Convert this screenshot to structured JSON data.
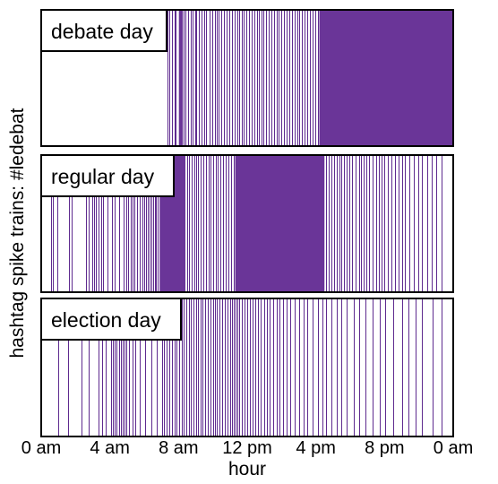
{
  "chart_data": {
    "type": "raster",
    "xlabel": "hour",
    "ylabel": "hashtag spike trains: #ledebat",
    "x_unit": "hours since midnight",
    "xlim": [
      0,
      24
    ],
    "x_ticks": [
      {
        "value": 0,
        "label": "0 am"
      },
      {
        "value": 4,
        "label": "4 am"
      },
      {
        "value": 8,
        "label": "8 am"
      },
      {
        "value": 12,
        "label": "12 pm"
      },
      {
        "value": 16,
        "label": "4 pm"
      },
      {
        "value": 20,
        "label": "8 pm"
      },
      {
        "value": 24,
        "label": "0 am"
      }
    ],
    "spike_color": "#5e2a8f",
    "fill_color": "#6a3598",
    "panels": [
      {
        "label": "debate day",
        "dense_segments": [
          [
            8.02,
            8.25
          ],
          [
            16.2,
            23.95
          ]
        ],
        "spikes": [
          7.35,
          7.45,
          7.6,
          7.75,
          7.85,
          8.3,
          8.42,
          8.55,
          8.7,
          8.82,
          8.95,
          9.05,
          9.2,
          9.35,
          9.5,
          9.62,
          9.8,
          9.95,
          10.1,
          10.2,
          10.35,
          10.5,
          10.62,
          10.8,
          10.95,
          11.1,
          11.25,
          11.4,
          11.55,
          11.7,
          11.8,
          11.95,
          12.1,
          12.25,
          12.4,
          12.55,
          12.7,
          12.85,
          12.95,
          13.1,
          13.25,
          13.4,
          13.55,
          13.7,
          13.85,
          14.0,
          14.15,
          14.3,
          14.45,
          14.6,
          14.75,
          14.9,
          15.05,
          15.2,
          15.35,
          15.5,
          15.65,
          15.8,
          15.95,
          16.1
        ]
      },
      {
        "label": "regular day",
        "dense_segments": [
          [
            6.9,
            8.4
          ],
          [
            11.3,
            16.5
          ]
        ],
        "spikes": [
          0.55,
          0.7,
          0.95,
          1.6,
          1.75,
          2.6,
          2.75,
          2.95,
          3.1,
          3.2,
          3.35,
          3.5,
          3.6,
          3.85,
          4.1,
          4.3,
          4.55,
          4.8,
          4.95,
          5.05,
          5.2,
          5.3,
          5.45,
          5.6,
          5.75,
          5.9,
          6.0,
          6.1,
          6.2,
          6.3,
          6.4,
          6.5,
          6.6,
          6.7,
          6.8,
          8.5,
          8.6,
          8.75,
          8.9,
          9.0,
          9.15,
          9.3,
          9.45,
          9.6,
          9.75,
          9.85,
          10.0,
          10.15,
          10.3,
          10.45,
          10.6,
          10.75,
          10.9,
          11.05,
          11.2,
          16.6,
          16.75,
          16.9,
          17.05,
          17.2,
          17.35,
          17.5,
          17.65,
          17.8,
          17.95,
          18.1,
          18.3,
          18.5,
          18.65,
          18.8,
          18.95,
          19.1,
          19.3,
          19.5,
          19.65,
          19.8,
          20.0,
          20.2,
          20.4,
          20.6,
          20.8,
          21.0,
          21.2,
          21.45,
          21.7,
          21.95,
          22.2,
          22.5,
          22.75,
          23.0,
          23.3
        ]
      },
      {
        "label": "election day",
        "dense_segments": [],
        "spikes": [
          1.0,
          1.55,
          2.35,
          2.75,
          3.35,
          3.55,
          3.75,
          4.05,
          4.15,
          4.3,
          4.4,
          4.55,
          4.65,
          4.75,
          4.85,
          4.95,
          5.1,
          5.3,
          5.5,
          5.75,
          6.05,
          6.4,
          6.75,
          7.05,
          7.15,
          7.3,
          7.45,
          7.6,
          7.75,
          7.9,
          8.05,
          8.2,
          8.3,
          8.45,
          8.6,
          8.7,
          8.85,
          9.0,
          9.15,
          9.3,
          9.4,
          9.55,
          9.7,
          9.85,
          10.0,
          10.1,
          10.25,
          10.4,
          10.55,
          10.7,
          10.85,
          11.0,
          11.1,
          11.2,
          11.3,
          11.45,
          11.55,
          11.7,
          11.85,
          12.0,
          12.15,
          12.3,
          12.45,
          12.6,
          12.8,
          13.0,
          13.15,
          13.3,
          13.5,
          13.7,
          13.9,
          14.1,
          14.3,
          14.5,
          14.75,
          15.0,
          15.3,
          15.5,
          15.8,
          16.1,
          16.4,
          16.6,
          16.9,
          17.2,
          17.5,
          17.8,
          18.2,
          18.5,
          18.9,
          19.3,
          19.7,
          20.05,
          20.5,
          21.0,
          21.4,
          21.8,
          22.2,
          22.8,
          23.3
        ]
      }
    ]
  }
}
